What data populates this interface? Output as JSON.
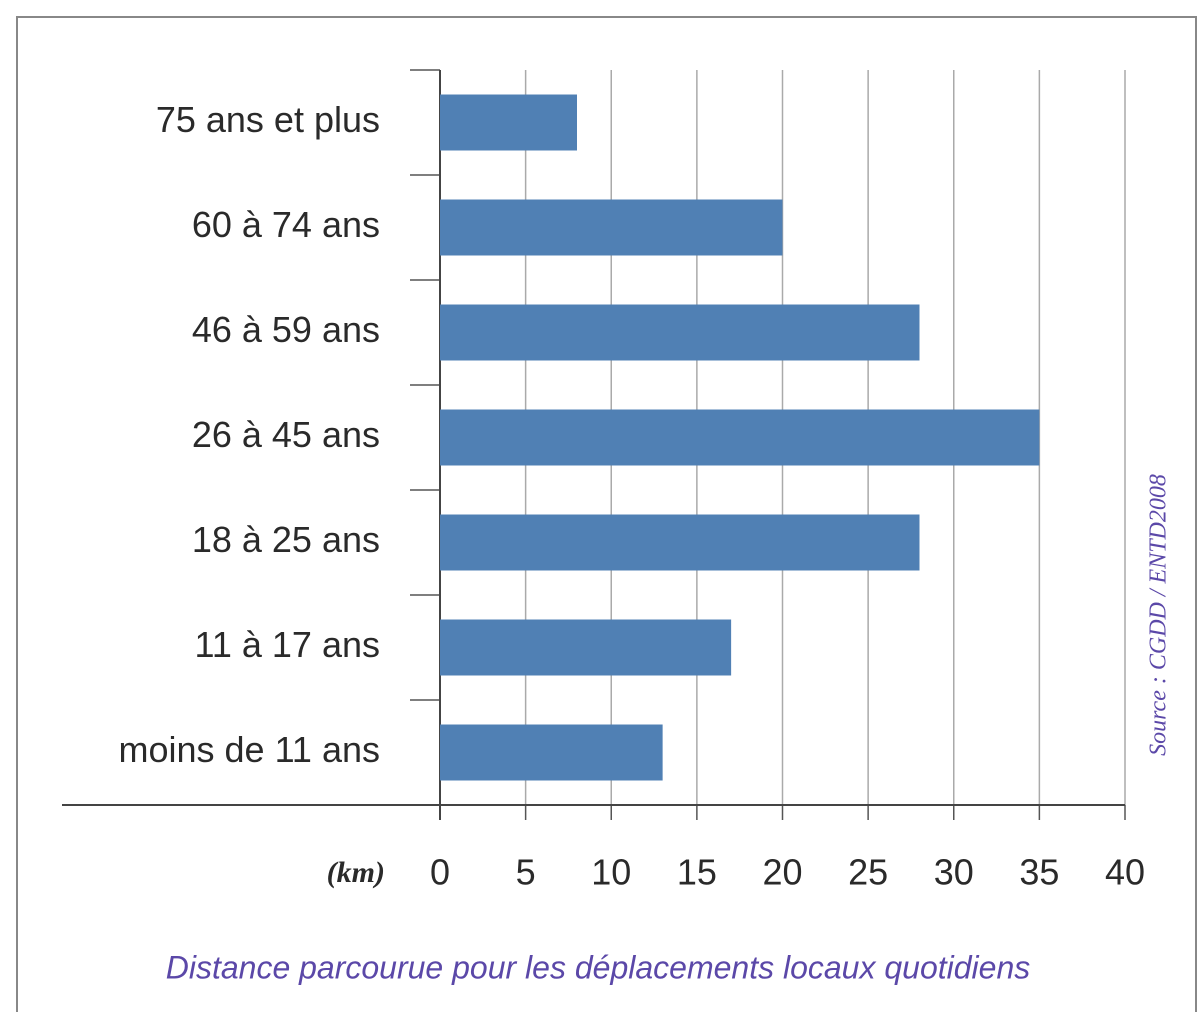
{
  "chart_data": {
    "type": "bar",
    "orientation": "horizontal",
    "title": "Distance parcourue pour les déplacements locaux quotidiens",
    "source": "Source : CGDD / ENTD2008",
    "x_label": "(km)",
    "categories": [
      "75 ans et plus",
      "60 à 74 ans",
      "46 à 59 ans",
      "26 à 45 ans",
      "18 à 25 ans",
      "11 à 17 ans",
      "moins de 11 ans"
    ],
    "values": [
      8,
      20,
      28,
      35,
      28,
      17,
      13
    ],
    "color": "#5080b4",
    "xlim": [
      0,
      40
    ],
    "xticks": [
      0,
      5,
      10,
      15,
      20,
      25,
      30,
      35,
      40
    ],
    "grid": true
  }
}
